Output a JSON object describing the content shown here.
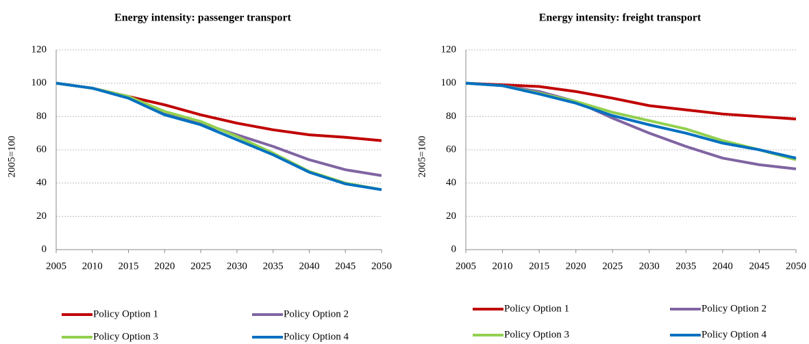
{
  "chart_data": [
    {
      "type": "line",
      "title": "Energy intensity:  passenger transport",
      "y_label": "2005=100",
      "x": [
        2005,
        2010,
        2015,
        2020,
        2025,
        2030,
        2035,
        2040,
        2045,
        2050
      ],
      "xlim": [
        2005,
        2050
      ],
      "xticks": [
        2005,
        2010,
        2015,
        2020,
        2025,
        2030,
        2035,
        2040,
        2045,
        2050
      ],
      "ylim": [
        0,
        120
      ],
      "yticks": [
        0,
        20,
        40,
        60,
        80,
        100,
        120
      ],
      "grid": true,
      "legend": "bottom",
      "series": [
        {
          "name": "Policy Option 1",
          "color": "#c00000",
          "values": [
            100,
            97,
            92,
            87,
            81,
            76,
            72,
            69,
            67.5,
            65.5
          ]
        },
        {
          "name": "Policy Option 2",
          "color": "#8064a2",
          "values": [
            100,
            97,
            92,
            82,
            76,
            69,
            62,
            54,
            48,
            44.5
          ]
        },
        {
          "name": "Policy Option 3",
          "color": "#92d050",
          "values": [
            100,
            97,
            92,
            83,
            77,
            68,
            58,
            47,
            40,
            36
          ]
        },
        {
          "name": "Policy Option 4",
          "color": "#0070c0",
          "values": [
            100,
            97,
            91,
            81,
            75,
            66,
            57,
            46.5,
            39.5,
            36
          ]
        }
      ]
    },
    {
      "type": "line",
      "title": "Energy intensity:  freight transport",
      "y_label": "2005=100",
      "x": [
        2005,
        2010,
        2015,
        2020,
        2025,
        2030,
        2035,
        2040,
        2045,
        2050
      ],
      "xlim": [
        2005,
        2050
      ],
      "xticks": [
        2005,
        2010,
        2015,
        2020,
        2025,
        2030,
        2035,
        2040,
        2045,
        2050
      ],
      "ylim": [
        0,
        120
      ],
      "yticks": [
        0,
        20,
        40,
        60,
        80,
        100,
        120
      ],
      "grid": true,
      "legend": "bottom",
      "series": [
        {
          "name": "Policy Option 1",
          "color": "#c00000",
          "values": [
            100,
            99,
            98,
            95,
            91,
            86.5,
            84,
            81.5,
            80,
            78.5
          ]
        },
        {
          "name": "Policy Option 2",
          "color": "#8064a2",
          "values": [
            100,
            98.5,
            95,
            89,
            79,
            70,
            62,
            55,
            51,
            48.5
          ]
        },
        {
          "name": "Policy Option 3",
          "color": "#92d050",
          "values": [
            100,
            98.5,
            94,
            89,
            82.5,
            77.5,
            72.5,
            65.5,
            60,
            54
          ]
        },
        {
          "name": "Policy Option 4",
          "color": "#0070c0",
          "values": [
            100,
            98.5,
            93.5,
            88,
            80.5,
            75,
            70,
            64,
            60,
            55
          ]
        }
      ]
    }
  ]
}
